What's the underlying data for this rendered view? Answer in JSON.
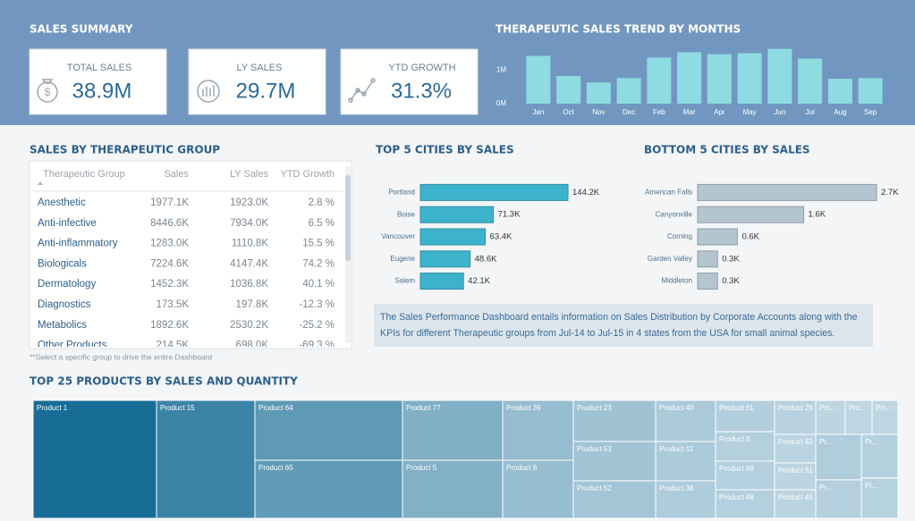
{
  "sections": {
    "summary": "SALES SUMMARY",
    "group_table": "SALES BY THERAPEUTIC GROUP",
    "note": "**Select a specific group to drive the entire Dashboard",
    "description": [
      "The Sales Performance Dashboard entails information on Sales Distribution by Corporate Accounts along with the",
      "KPIs for different Therapeutic groups from Jul-14 to Jul-15 in 4 states from the USA for small animal species."
    ]
  },
  "kpis": [
    {
      "label": "TOTAL SALES",
      "value": "38.9M"
    },
    {
      "label": "LY SALES",
      "value": "29.7M"
    },
    {
      "label": "YTD GROWTH",
      "value": "31.3%"
    }
  ],
  "table": {
    "columns": [
      "Therapeutic Group",
      "Sales",
      "LY Sales",
      "YTD Growth"
    ],
    "rows": [
      [
        "Anesthetic",
        "1977.1K",
        "1923.0K",
        "2.8 %"
      ],
      [
        "Anti-infective",
        "8446.6K",
        "7934.0K",
        "6.5 %"
      ],
      [
        "Anti-inflammatory",
        "1283.0K",
        "1110.8K",
        "15.5 %"
      ],
      [
        "Biologicals",
        "7224.6K",
        "4147.4K",
        "74.2 %"
      ],
      [
        "Dermatology",
        "1452.3K",
        "1036.8K",
        "40.1 %"
      ],
      [
        "Diagnostics",
        "173.5K",
        "197.8K",
        "-12.3 %"
      ],
      [
        "Metabolics",
        "1892.6K",
        "2530.2K",
        "-25.2 %"
      ],
      [
        "Other Products",
        "214.5K",
        "698.0K",
        "-69.3 %"
      ]
    ]
  },
  "chart_data": [
    {
      "type": "bar",
      "title": "THERAPEUTIC SALES TREND BY MONTHS",
      "categories": [
        "Jan",
        "Oct",
        "Nov",
        "Dec",
        "Feb",
        "Mar",
        "Apr",
        "May",
        "Jun",
        "Jul",
        "Aug",
        "Sep"
      ],
      "values": [
        1420000,
        820000,
        630000,
        760000,
        1370000,
        1530000,
        1470000,
        1500000,
        1630000,
        1340000,
        740000,
        760000
      ],
      "ylim": [
        0,
        1700000
      ],
      "yticks": [
        {
          "value": 0,
          "label": "0M"
        },
        {
          "value": 1000000,
          "label": "1M"
        }
      ],
      "color": "#8edbe2"
    },
    {
      "type": "barh",
      "title": "TOP 5 CITIES BY SALES",
      "categories": [
        "Portland",
        "Boise",
        "Vancouver",
        "Eugene",
        "Salem"
      ],
      "values": [
        144200,
        71300,
        63400,
        48600,
        42100
      ],
      "value_labels": [
        "144.2K",
        "71.3K",
        "63.4K",
        "48.6K",
        "42.1K"
      ],
      "color": "#3db3cb"
    },
    {
      "type": "barh",
      "title": "BOTTOM 5 CITIES BY SALES",
      "categories": [
        "American Falls",
        "Canyonville",
        "Corning",
        "Garden Valley",
        "Middleton"
      ],
      "values": [
        2700,
        1600,
        600,
        300,
        300
      ],
      "value_labels": [
        "2.7K",
        "1.6K",
        "0.6K",
        "0.3K",
        "0.3K"
      ],
      "color": "#b3c6d0"
    },
    {
      "type": "treemap",
      "title": "TOP 25 PRODUCTS BY SALES AND QUANTITY",
      "categories": [
        "Product 1",
        "Product 15",
        "Product 64",
        "Product 65",
        "Product 77",
        "Product 5",
        "Product 39",
        "Product 6",
        "Product 23",
        "Product 53",
        "Product 52",
        "Product 40",
        "Product 11",
        "Product 38",
        "Product 61",
        "Product 3",
        "Product 68",
        "Product 48",
        "Product 29",
        "Product 42",
        "Product 31",
        "Product 45",
        "Pro...",
        "Pro...",
        "Pro...",
        "Pr...",
        "Pr...",
        "Pr...",
        "Pr..."
      ],
      "values": [
        18216,
        14520,
        11055,
        10725,
        7504,
        7280,
        5293,
        5135,
        4232,
        4048,
        3864,
        3082,
        2948,
        2814,
        2310,
        2178,
        2112,
        2112,
        1748,
        1472,
        1380,
        1472,
        1254,
        1140,
        1102,
        2600,
        2200,
        2000,
        1848
      ],
      "color_scale": [
        "#c9dde7",
        "#186d97"
      ]
    }
  ]
}
